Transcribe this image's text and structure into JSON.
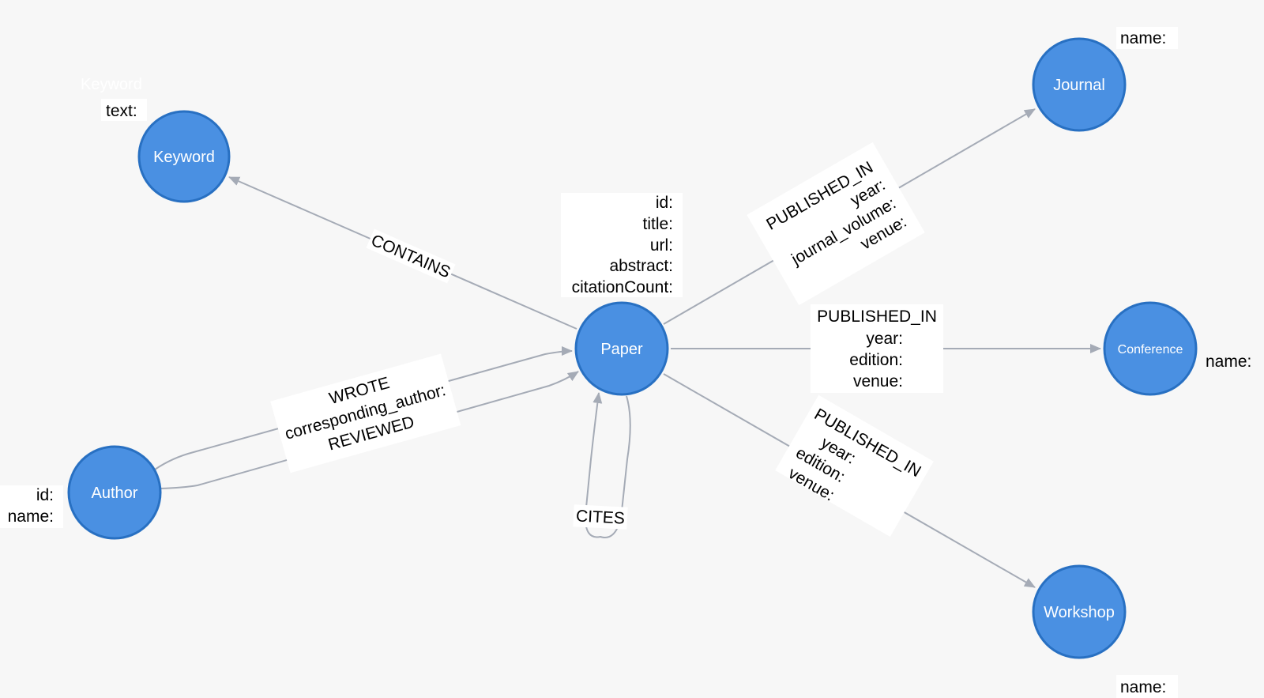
{
  "nodes": {
    "paper": {
      "label": "Paper",
      "props": [
        "id:",
        "title:",
        "url:",
        "abstract:",
        "citationCount:"
      ]
    },
    "keyword": {
      "label": "Keyword",
      "caption": "Keyword",
      "props": [
        "text:"
      ]
    },
    "author": {
      "label": "Author",
      "props": [
        "id:",
        "name:"
      ]
    },
    "journal": {
      "label": "Journal",
      "props": [
        "name:"
      ]
    },
    "conference": {
      "label": "Conference",
      "props": [
        "name:"
      ]
    },
    "workshop": {
      "label": "Workshop",
      "props": [
        "name:"
      ]
    }
  },
  "edges": {
    "contains": {
      "type": "CONTAINS"
    },
    "wrote": {
      "type": "WROTE",
      "props": [
        "corresponding_author:"
      ]
    },
    "reviewed": {
      "type": "REVIEWED"
    },
    "cites": {
      "type": "CITES"
    },
    "published_in_journal": {
      "type": "PUBLISHED_IN",
      "props": [
        "year:",
        "journal_volume:",
        "venue:"
      ]
    },
    "published_in_conference": {
      "type": "PUBLISHED_IN",
      "props": [
        "year:",
        "edition:",
        "venue:"
      ]
    },
    "published_in_workshop": {
      "type": "PUBLISHED_IN",
      "props": [
        "year:",
        "edition:",
        "venue:"
      ]
    }
  },
  "colors": {
    "background": "#f7f7f7",
    "node_fill": "#4a90e2",
    "node_stroke": "#2870c2",
    "edge": "#a5abb6"
  }
}
